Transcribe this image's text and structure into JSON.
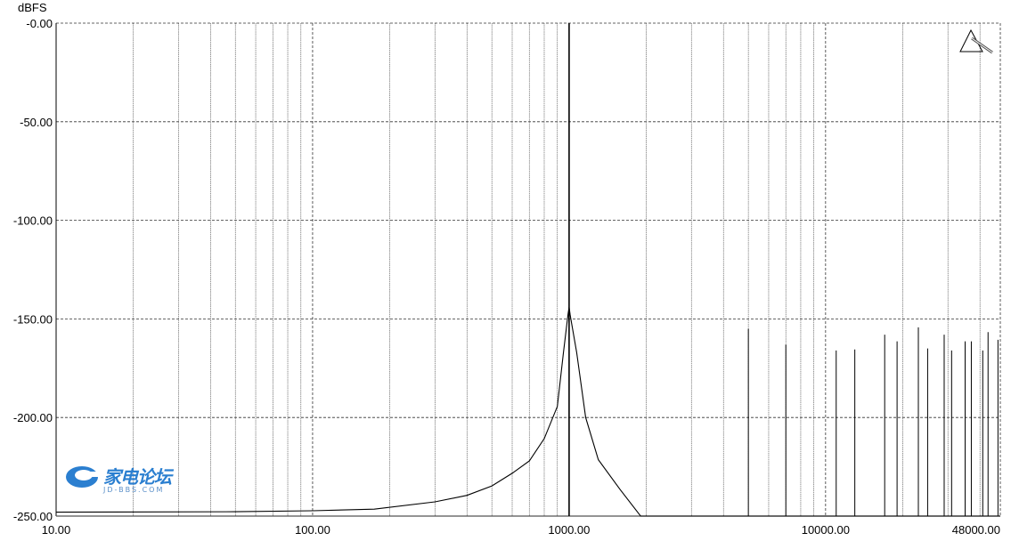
{
  "chart_data": {
    "type": "line",
    "title": "",
    "ylabel": "dBFS",
    "xlabel": "",
    "x_scale": "log",
    "xlim": [
      10,
      48000
    ],
    "ylim": [
      -250,
      0
    ],
    "grid": true,
    "x_tick_labels": [
      "10.00",
      "100.00",
      "1000.00",
      "10000.00",
      "48000.00"
    ],
    "x_ticks": [
      10,
      100,
      1000,
      10000,
      48000
    ],
    "y_tick_labels": [
      "-0.00",
      "-50.00",
      "-100.00",
      "-150.00",
      "-200.00",
      "-250.00"
    ],
    "y_ticks": [
      0,
      -50,
      -100,
      -150,
      -200,
      -250
    ],
    "line_color": "#000000",
    "series": [
      {
        "x": [
          10,
          50,
          100,
          174,
          300,
          400,
          500,
          600,
          700,
          800,
          900,
          950,
          990,
          1000,
          1010,
          1070,
          1160,
          1300,
          1580,
          1900,
          48000
        ],
        "y": [
          -248,
          -247.8,
          -247.3,
          -246.5,
          -242.8,
          -239.5,
          -234.7,
          -228.3,
          -222,
          -210.7,
          -194.4,
          -167.3,
          -148,
          -144,
          -148,
          -167,
          -200,
          -221.4,
          -236.5,
          -250,
          -250
        ]
      }
    ],
    "spikes": {
      "x": [
        1000,
        5000,
        7000,
        11000,
        13000,
        17000,
        19000,
        23000,
        23000,
        25000,
        29000,
        31000,
        35000,
        37000,
        41000,
        43000,
        47000
      ],
      "y": [
        0,
        -155,
        -163,
        -166,
        -165.5,
        -158,
        -161.4,
        -154.3,
        -160.5,
        -165,
        -158,
        -166,
        -161.4,
        -161.4,
        -166,
        -156.7,
        -160.6
      ]
    }
  },
  "watermark": {
    "text_cn": "家电论坛",
    "text_en": "JD-BBS.COM"
  },
  "icons": {
    "corner": "prism-icon"
  }
}
